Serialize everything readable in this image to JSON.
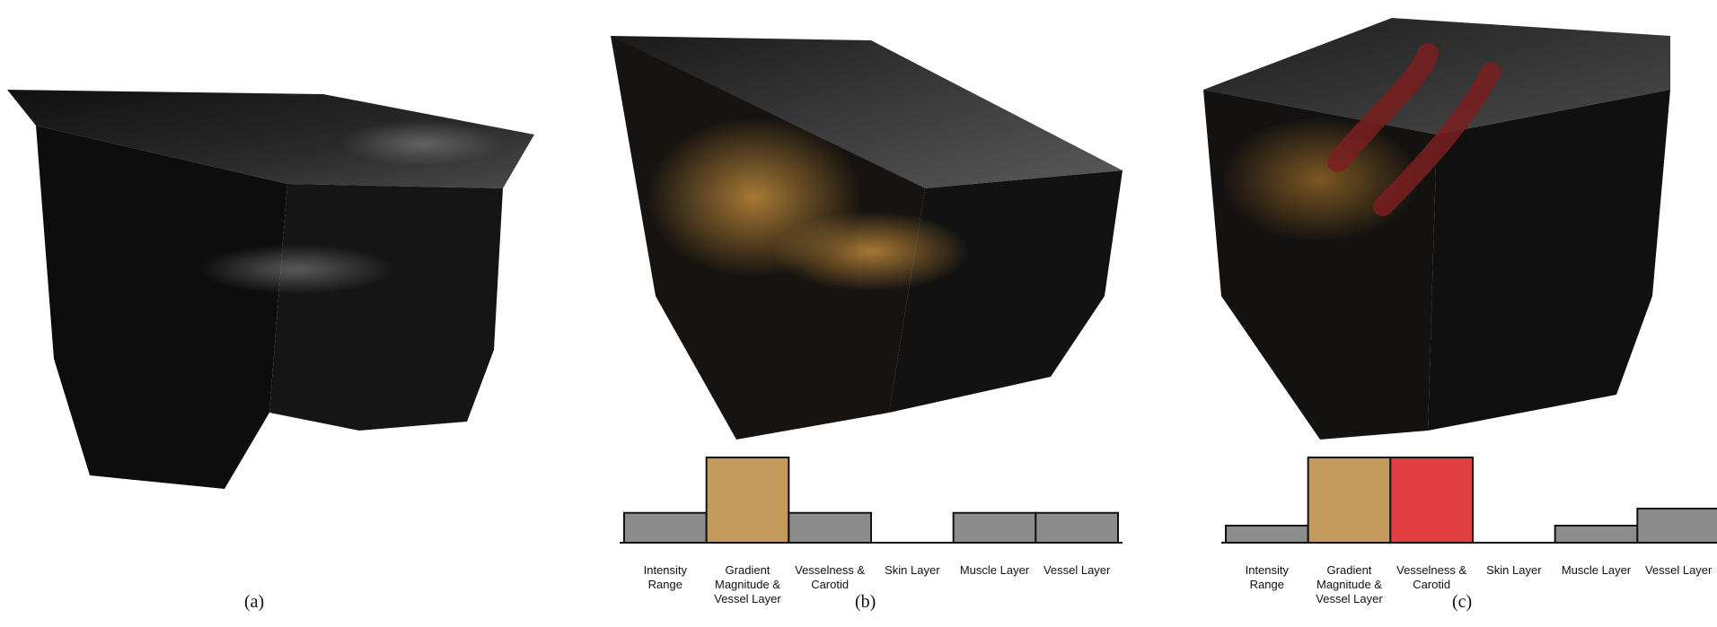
{
  "figure": {
    "panels": [
      {
        "label": "(a)",
        "description_colors": {
          "surface": "#1b1b1b",
          "highlight": "#9a9a9a"
        }
      },
      {
        "label": "(b)",
        "description_colors": {
          "surface": "#161310",
          "highlight": "#c08a3a"
        }
      },
      {
        "label": "(c)",
        "description_colors": {
          "surface": "#161310",
          "highlight": "#b07830",
          "vessel": "#7a1f1f"
        }
      }
    ]
  },
  "chart_data": [
    {
      "type": "bar",
      "panel": "(b)",
      "categories": [
        "Intensity Range",
        "Gradient Magnitude & Vessel Layer",
        "Vesselness & Carotid",
        "Skin Layer",
        "Muscle Layer",
        "Vessel Layer"
      ],
      "category_lines": [
        [
          "Intensity",
          "Range"
        ],
        [
          "Gradient",
          "Magnitude &",
          "Vessel Layer"
        ],
        [
          "Vesselness &",
          "Carotid"
        ],
        [
          "Skin Layer"
        ],
        [
          "Muscle Layer"
        ],
        [
          "Vessel Layer"
        ]
      ],
      "values": [
        0.35,
        1.0,
        0.35,
        0,
        0.35,
        0.35
      ],
      "colors": [
        "#8c8c8c",
        "#c49a5c",
        "#8c8c8c",
        "#8c8c8c",
        "#8c8c8c",
        "#8c8c8c"
      ],
      "ylim": [
        0,
        1
      ]
    },
    {
      "type": "bar",
      "panel": "(c)",
      "categories": [
        "Intensity Range",
        "Gradient Magnitude & Vessel Layer",
        "Vesselness & Carotid",
        "Skin Layer",
        "Muscle Layer",
        "Vessel Layer"
      ],
      "category_lines": [
        [
          "Intensity",
          "Range"
        ],
        [
          "Gradient",
          "Magnitude &",
          "Vessel Layer"
        ],
        [
          "Vesselness &",
          "Carotid"
        ],
        [
          "Skin Layer"
        ],
        [
          "Muscle Layer"
        ],
        [
          "Vessel Layer"
        ]
      ],
      "values": [
        0.2,
        1.0,
        1.0,
        0,
        0.2,
        0.4
      ],
      "colors": [
        "#8c8c8c",
        "#c49a5c",
        "#e24040",
        "#8c8c8c",
        "#8c8c8c",
        "#8c8c8c"
      ],
      "ylim": [
        0,
        1
      ]
    }
  ]
}
